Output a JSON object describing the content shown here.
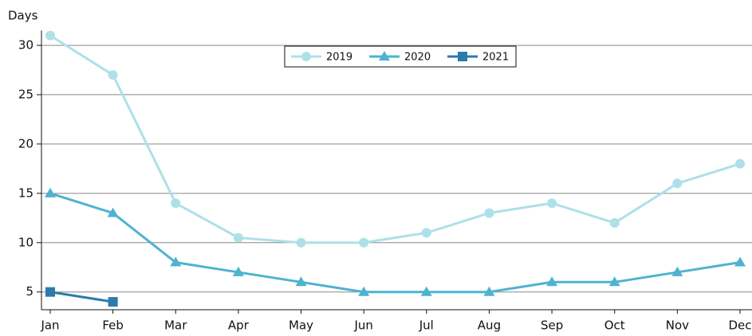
{
  "chart_data": {
    "type": "line",
    "y_label": "Days",
    "categories": [
      "Jan",
      "Feb",
      "Mar",
      "Apr",
      "May",
      "Jun",
      "Jul",
      "Aug",
      "Sep",
      "Oct",
      "Nov",
      "Dec"
    ],
    "series": [
      {
        "name": "2019",
        "color": "#aee0e8",
        "marker": "circle",
        "values": [
          31,
          27,
          14,
          10.5,
          10,
          10,
          11,
          13,
          14,
          12,
          16,
          18
        ]
      },
      {
        "name": "2020",
        "color": "#4eb3cf",
        "marker": "triangle",
        "values": [
          15,
          13,
          8,
          7,
          6,
          5,
          5,
          5,
          6,
          6,
          7,
          8
        ]
      },
      {
        "name": "2021",
        "color": "#2b7bab",
        "marker": "square",
        "values": [
          5,
          4,
          null,
          null,
          null,
          null,
          null,
          null,
          null,
          null,
          null,
          null
        ]
      }
    ],
    "ylim": [
      3.2,
      31.5
    ],
    "yticks": [
      5,
      10,
      15,
      20,
      25,
      30
    ],
    "grid": true,
    "legend": "top-center"
  }
}
